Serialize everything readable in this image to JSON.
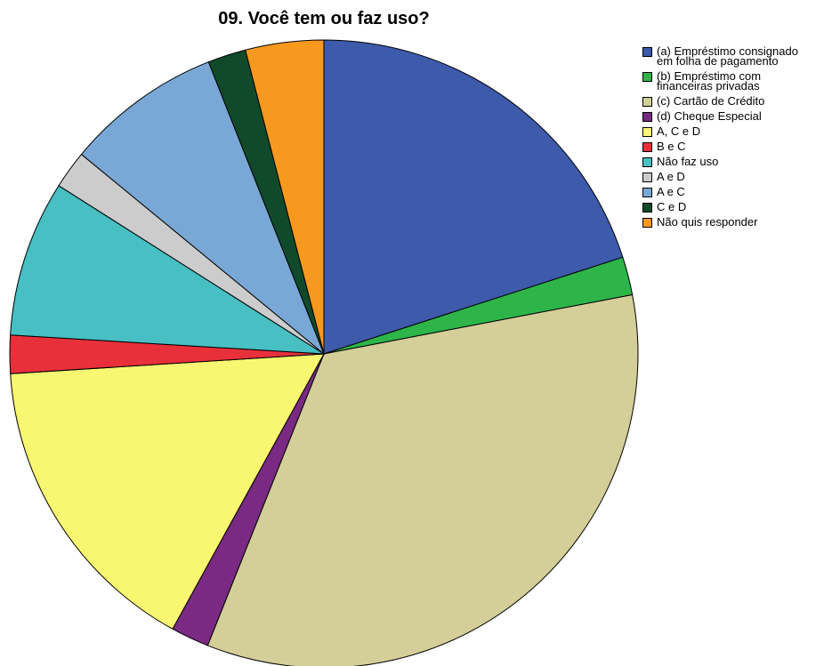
{
  "chart_data": {
    "type": "pie",
    "title": "09. Você tem ou faz uso?",
    "legend_position": "right",
    "slices": [
      {
        "label": "(a) Empréstimo consignado\nem folha de pagamento",
        "value": 20.4,
        "color": "#3d5aab"
      },
      {
        "label": "(b) Empréstimo com\nfinanceiras privadas",
        "value": 2.0,
        "color": "#2db54a"
      },
      {
        "label": "(c) Cartão de Crédito",
        "value": 34.7,
        "color": "#d4ce99"
      },
      {
        "label": "(d) Cheque Especial",
        "value": 2.0,
        "color": "#7a2a82"
      },
      {
        "label": "A, C e D",
        "value": 16.3,
        "color": "#f9f771"
      },
      {
        "label": "B e C",
        "value": 2.0,
        "color": "#e8303b"
      },
      {
        "label": "Não faz uso",
        "value": 8.2,
        "color": "#47bfc3"
      },
      {
        "label": "A e D",
        "value": 2.0,
        "color": "#cccccc"
      },
      {
        "label": "A e C",
        "value": 8.2,
        "color": "#7aa8d6"
      },
      {
        "label": "C e D",
        "value": 2.0,
        "color": "#114a2a"
      },
      {
        "label": "Não quis responder",
        "value": 4.1,
        "color": "#f7991f"
      }
    ]
  }
}
